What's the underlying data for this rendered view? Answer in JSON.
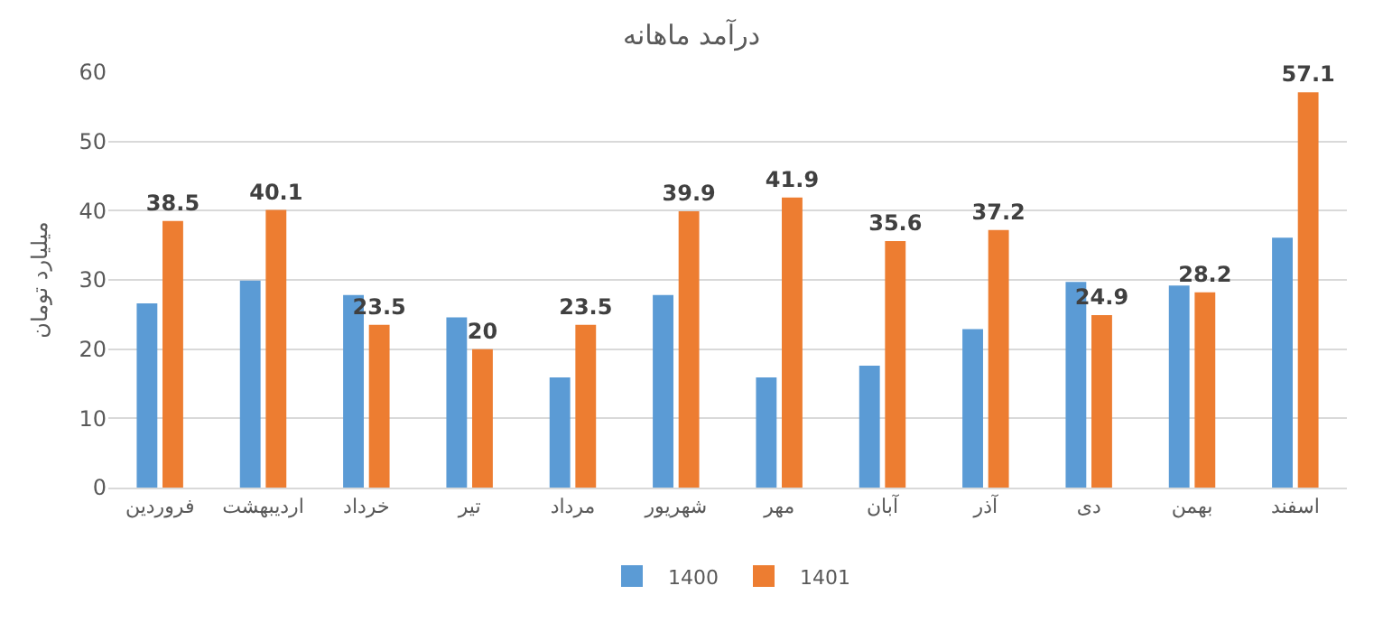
{
  "chart_data": {
    "type": "bar",
    "title": "درآمد ماهانه",
    "ylabel": "میلیارد تومان",
    "categories": [
      "فروردین",
      "اردیبهشت",
      "خرداد",
      "تیر",
      "مرداد",
      "شهریور",
      "مهر",
      "آبان",
      "آذر",
      "دی",
      "بهمن",
      "اسفند"
    ],
    "series": [
      {
        "name": "1400",
        "color": "#5b9bd5",
        "values": [
          26.6,
          29.9,
          27.8,
          24.6,
          15.9,
          27.8,
          15.9,
          17.6,
          22.9,
          29.7,
          29.2,
          36.1
        ]
      },
      {
        "name": "1401",
        "color": "#ed7d31",
        "values": [
          38.5,
          40.1,
          23.5,
          20,
          23.5,
          39.9,
          41.9,
          35.6,
          37.2,
          24.9,
          28.2,
          57.1
        ],
        "value_labels": [
          "38.5",
          "40.1",
          "23.5",
          "20",
          "23.5",
          "39.9",
          "41.9",
          "35.6",
          "37.2",
          "24.9",
          "28.2",
          "57.1"
        ]
      }
    ],
    "ylim": [
      0,
      60
    ],
    "yticks": [
      0,
      10,
      20,
      30,
      40,
      50,
      60
    ],
    "grid": "y",
    "legend": "bottom"
  }
}
